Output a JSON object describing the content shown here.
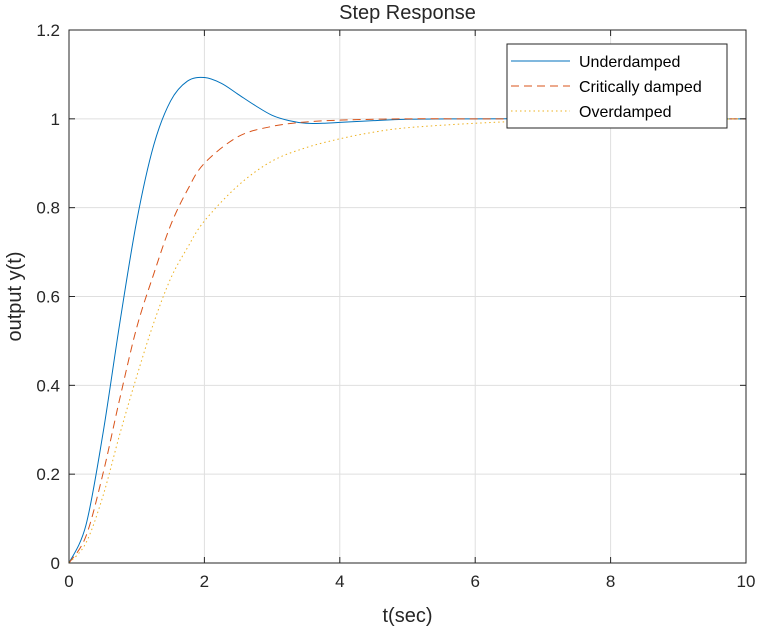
{
  "chart_data": {
    "type": "line",
    "title": "Step Response",
    "xlabel": "t(sec)",
    "ylabel": "output y(t)",
    "xlim": [
      0,
      10
    ],
    "ylim": [
      0,
      1.2
    ],
    "xticks": [
      0,
      2,
      4,
      6,
      8,
      10
    ],
    "xtick_labels": [
      "0",
      "2",
      "4",
      "6",
      "8",
      "10"
    ],
    "yticks": [
      0,
      0.2,
      0.4,
      0.6,
      0.8,
      1,
      1.2
    ],
    "ytick_labels": [
      "0",
      "0.2",
      "0.4",
      "0.6",
      "0.8",
      "1",
      "1.2"
    ],
    "grid": true,
    "legend_position": "top-right",
    "series": [
      {
        "name": "Underdamped",
        "color": "#0072BD",
        "style": "solid",
        "x": [
          0,
          0.25,
          0.5,
          0.75,
          1,
          1.25,
          1.5,
          1.75,
          2,
          2.25,
          2.5,
          2.75,
          3,
          3.25,
          3.5,
          3.75,
          4,
          4.5,
          5,
          6,
          7,
          8,
          9,
          10
        ],
        "y": [
          0,
          0.085,
          0.29,
          0.54,
          0.77,
          0.94,
          1.04,
          1.085,
          1.093,
          1.08,
          1.055,
          1.03,
          1.008,
          0.996,
          0.99,
          0.99,
          0.992,
          0.996,
          0.999,
          1.0,
          1.0,
          1.0,
          1.0,
          1.0
        ]
      },
      {
        "name": "Critically damped",
        "color": "#D95319",
        "style": "dashed",
        "x": [
          0,
          0.25,
          0.5,
          0.75,
          1,
          1.25,
          1.5,
          1.75,
          2,
          2.5,
          3,
          3.5,
          4,
          4.5,
          5,
          6,
          7,
          8,
          9,
          10
        ],
        "y": [
          0,
          0.06,
          0.2,
          0.37,
          0.53,
          0.65,
          0.76,
          0.84,
          0.9,
          0.96,
          0.983,
          0.993,
          0.997,
          0.999,
          1.0,
          1.0,
          1.0,
          1.0,
          1.0,
          1.0
        ]
      },
      {
        "name": "Overdamped",
        "color": "#EDB120",
        "style": "dotted",
        "x": [
          0,
          0.25,
          0.5,
          0.75,
          1,
          1.25,
          1.5,
          1.75,
          2,
          2.5,
          3,
          3.5,
          4,
          4.5,
          5,
          6,
          7,
          8,
          9,
          10
        ],
        "y": [
          0,
          0.045,
          0.15,
          0.29,
          0.42,
          0.54,
          0.64,
          0.71,
          0.77,
          0.85,
          0.905,
          0.935,
          0.955,
          0.97,
          0.98,
          0.99,
          0.996,
          0.998,
          0.999,
          1.0
        ]
      }
    ]
  }
}
